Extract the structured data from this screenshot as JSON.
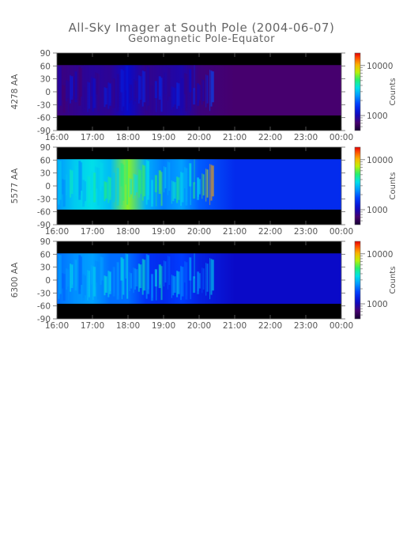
{
  "page": {
    "title": "All-Sky Imager at South Pole (2004-06-07)",
    "subtitle": "Geomagnetic Pole-Equator"
  },
  "chart_data": [
    {
      "type": "heatmap",
      "ylabel": "4278 AA",
      "xlabel": "",
      "x_tick_labels": [
        "16:00",
        "17:00",
        "18:00",
        "19:00",
        "20:00",
        "21:00",
        "22:00",
        "23:00",
        "00:00"
      ],
      "y_ticks": [
        90,
        60,
        30,
        0,
        -30,
        -60,
        -90
      ],
      "ylim": [
        -90,
        90
      ],
      "data_band": [
        -55,
        62
      ],
      "colorbar": {
        "label": "Counts",
        "ticks": [
          1000,
          10000
        ],
        "scale": "log"
      },
      "colormap": "rainbow",
      "intensity_profile": {
        "hours_from_16": [
          0.0,
          0.5,
          1.0,
          1.5,
          2.0,
          2.5,
          3.0,
          3.5,
          4.0,
          5.0,
          6.0,
          7.0,
          8.0
        ],
        "level": [
          0.12,
          0.14,
          0.16,
          0.15,
          0.22,
          0.14,
          0.16,
          0.18,
          0.12,
          0.1,
          0.1,
          0.1,
          0.1
        ]
      }
    },
    {
      "type": "heatmap",
      "ylabel": "5577 AA",
      "xlabel": "",
      "x_tick_labels": [
        "16:00",
        "17:00",
        "18:00",
        "19:00",
        "20:00",
        "21:00",
        "22:00",
        "23:00",
        "00:00"
      ],
      "y_ticks": [
        90,
        60,
        30,
        0,
        -30,
        -60,
        -90
      ],
      "ylim": [
        -90,
        90
      ],
      "data_band": [
        -55,
        62
      ],
      "colorbar": {
        "label": "Counts",
        "ticks": [
          1000,
          10000
        ],
        "scale": "log"
      },
      "colormap": "rainbow",
      "intensity_profile": {
        "hours_from_16": [
          0.0,
          0.5,
          1.0,
          1.5,
          2.0,
          2.5,
          3.0,
          3.5,
          4.0,
          5.0,
          6.0,
          7.0,
          8.0
        ],
        "level": [
          0.45,
          0.52,
          0.55,
          0.5,
          0.72,
          0.48,
          0.42,
          0.46,
          0.38,
          0.3,
          0.3,
          0.3,
          0.3
        ]
      }
    },
    {
      "type": "heatmap",
      "ylabel": "6300 AA",
      "xlabel": "",
      "x_tick_labels": [
        "16:00",
        "17:00",
        "18:00",
        "19:00",
        "20:00",
        "21:00",
        "22:00",
        "23:00",
        "00:00"
      ],
      "y_ticks": [
        90,
        60,
        30,
        0,
        -30,
        -60,
        -90
      ],
      "ylim": [
        -90,
        90
      ],
      "data_band": [
        -55,
        62
      ],
      "colorbar": {
        "label": "Counts",
        "ticks": [
          1000,
          10000
        ],
        "scale": "log"
      },
      "colormap": "rainbow",
      "intensity_profile": {
        "hours_from_16": [
          0.0,
          0.5,
          1.0,
          1.5,
          2.0,
          2.5,
          3.0,
          3.5,
          4.0,
          5.0,
          6.0,
          7.0,
          8.0
        ],
        "level": [
          0.4,
          0.44,
          0.46,
          0.4,
          0.4,
          0.32,
          0.3,
          0.34,
          0.28,
          0.22,
          0.22,
          0.22,
          0.22
        ]
      }
    }
  ]
}
